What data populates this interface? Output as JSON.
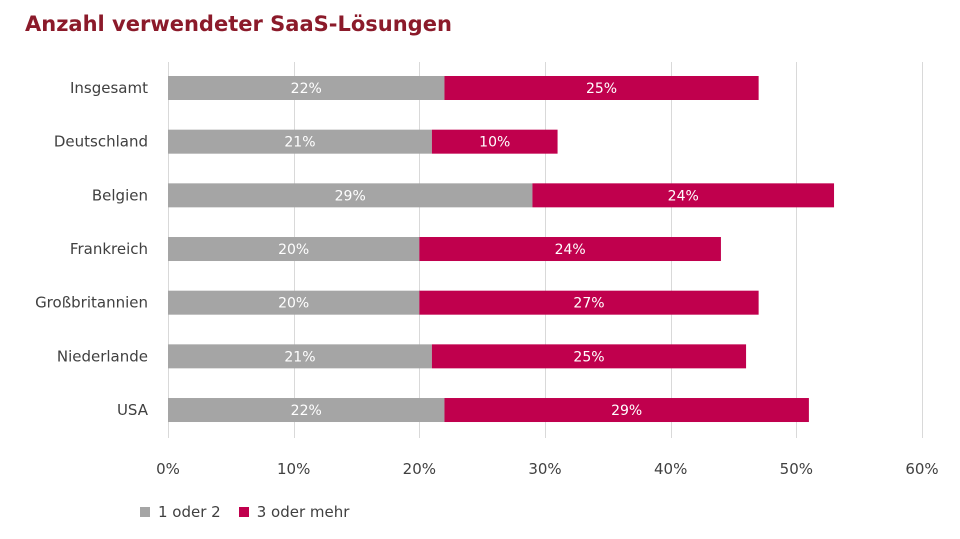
{
  "chart_data": {
    "type": "bar",
    "orientation": "horizontal",
    "stacked": true,
    "title": "Anzahl verwendeter SaaS-Lösungen",
    "categories": [
      "Insgesamt",
      "Deutschland",
      "Belgien",
      "Frankreich",
      "Großbritannien",
      "Niederlande",
      "USA"
    ],
    "series": [
      {
        "name": "1 oder 2",
        "color": "#a5a5a5",
        "values": [
          22,
          21,
          29,
          20,
          20,
          21,
          22
        ],
        "labels": [
          "22%",
          "21%",
          "29%",
          "20%",
          "20%",
          "21%",
          "22%"
        ]
      },
      {
        "name": "3 oder mehr",
        "color": "#c0004d",
        "values": [
          25,
          10,
          24,
          24,
          27,
          25,
          29
        ],
        "labels": [
          "25%",
          "10%",
          "24%",
          "24%",
          "27%",
          "25%",
          "29%"
        ]
      }
    ],
    "xlim": [
      0,
      60
    ],
    "xticks": [
      0,
      10,
      20,
      30,
      40,
      50,
      60
    ],
    "xtick_labels": [
      "0%",
      "10%",
      "20%",
      "30%",
      "40%",
      "50%",
      "60%"
    ],
    "grid": "vertical",
    "legend": "bottom-left"
  }
}
